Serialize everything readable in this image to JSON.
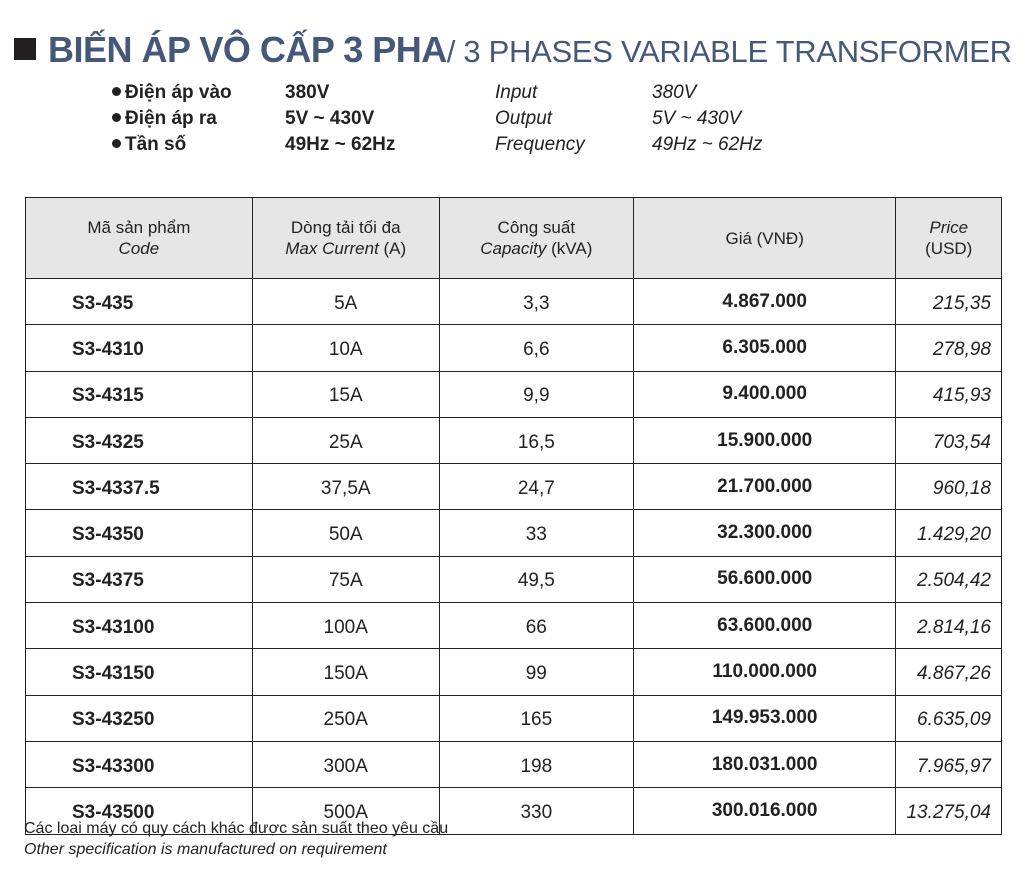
{
  "title": {
    "main": "BIẾN ÁP VÔ CẤP 3 PHA",
    "sub": "/ 3 PHASES VARIABLE TRANSFORMER"
  },
  "specs": [
    {
      "label_vi": "Điện áp vào",
      "value_vi": "380V",
      "label_en": "Input",
      "value_en": "380V"
    },
    {
      "label_vi": "Điện áp ra",
      "value_vi": "5V ~ 430V",
      "label_en": "Output",
      "value_en": "5V ~ 430V"
    },
    {
      "label_vi": "Tần số",
      "value_vi": "49Hz ~ 62Hz",
      "label_en": "Frequency",
      "value_en": "49Hz ~ 62Hz"
    }
  ],
  "table": {
    "headers": [
      {
        "vi": "Mã sản phẩm",
        "en": "Code",
        "unit": ""
      },
      {
        "vi": "Dòng tải tối đa",
        "en": "Max Current",
        "unit": " (A)"
      },
      {
        "vi": "Công suất",
        "en": "Capacity",
        "unit": " (kVA)"
      },
      {
        "vi": "Giá (VNĐ)",
        "en": "",
        "unit": ""
      },
      {
        "vi": "",
        "en": "Price",
        "unit": " (USD)"
      }
    ],
    "rows": [
      [
        "S3-435",
        "5A",
        "3,3",
        "4.867.000",
        "215,35"
      ],
      [
        "S3-4310",
        "10A",
        "6,6",
        "6.305.000",
        "278,98"
      ],
      [
        "S3-4315",
        "15A",
        "9,9",
        "9.400.000",
        "415,93"
      ],
      [
        "S3-4325",
        "25A",
        "16,5",
        "15.900.000",
        "703,54"
      ],
      [
        "S3-4337.5",
        "37,5A",
        "24,7",
        "21.700.000",
        "960,18"
      ],
      [
        "S3-4350",
        "50A",
        "33",
        "32.300.000",
        "1.429,20"
      ],
      [
        "S3-4375",
        "75A",
        "49,5",
        "56.600.000",
        "2.504,42"
      ],
      [
        "S3-43100",
        "100A",
        "66",
        "63.600.000",
        "2.814,16"
      ],
      [
        "S3-43150",
        "150A",
        "99",
        "110.000.000",
        "4.867,26"
      ],
      [
        "S3-43250",
        "250A",
        "165",
        "149.953.000",
        "6.635,09"
      ],
      [
        "S3-43300",
        "300A",
        "198",
        "180.031.000",
        "7.965,97"
      ],
      [
        "S3-43500",
        "500A",
        "330",
        "300.016.000",
        "13.275,04"
      ]
    ]
  },
  "footer": {
    "vi": "Các loại máy có quy cách khác được sản suất theo yêu cầu",
    "en": "Other specification is manufactured on requirement"
  },
  "colors": {
    "title": "#45587a",
    "header_bg": "#e6e6e6"
  }
}
